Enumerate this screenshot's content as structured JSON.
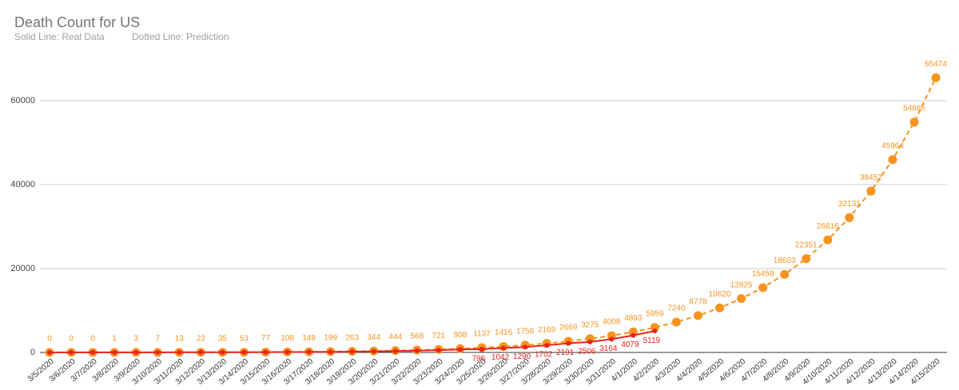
{
  "chart_data": {
    "type": "line",
    "title": "Death Count for US",
    "subtitle": [
      "Solid Line: Real Data",
      "Dotted Line: Prediction"
    ],
    "categories": [
      "3/5/2020",
      "3/6/2020",
      "3/7/2020",
      "3/8/2020",
      "3/9/2020",
      "3/10/2020",
      "3/11/2020",
      "3/12/2020",
      "3/13/2020",
      "3/14/2020",
      "3/15/2020",
      "3/16/2020",
      "3/17/2020",
      "3/18/2020",
      "3/19/2020",
      "3/20/2020",
      "3/21/2020",
      "3/22/2020",
      "3/23/2020",
      "3/24/2020",
      "3/25/2020",
      "3/26/2020",
      "3/27/2020",
      "3/28/2020",
      "3/29/2020",
      "3/30/2020",
      "3/31/2020",
      "4/1/2020",
      "4/2/2020",
      "4/3/2020",
      "4/4/2020",
      "4/5/2020",
      "4/6/2020",
      "4/7/2020",
      "4/8/2020",
      "4/9/2020",
      "4/10/2020",
      "4/11/2020",
      "4/12/2020",
      "4/13/2020",
      "4/14/2020",
      "4/15/2020"
    ],
    "series": [
      {
        "name": "Prediction",
        "color": "#f7931e",
        "dashed": true,
        "label_position": "above",
        "values": [
          0,
          0,
          0,
          1,
          3,
          7,
          13,
          22,
          35,
          53,
          77,
          108,
          148,
          199,
          263,
          344,
          444,
          568,
          721,
          908,
          1137,
          1416,
          1756,
          2169,
          2669,
          3275,
          4008,
          4893,
          5959,
          7240,
          8778,
          10620,
          12825,
          15459,
          18603,
          22351,
          26816,
          32131,
          38452,
          45964,
          54885,
          65474
        ]
      },
      {
        "name": "Real Data",
        "color": "#e8231f",
        "dashed": false,
        "label_position": "below",
        "values": [
          11,
          14,
          17,
          21,
          22,
          28,
          36,
          40,
          47,
          54,
          63,
          85,
          108,
          118,
          200,
          244,
          307,
          427,
          552,
          706,
          796,
          1042,
          1290,
          1702,
          2191,
          2506,
          3164,
          4079,
          5119,
          null,
          null,
          null,
          null,
          null,
          null,
          null,
          null,
          null,
          null,
          null,
          null,
          null
        ],
        "value_labels": [
          null,
          null,
          null,
          null,
          null,
          null,
          null,
          null,
          null,
          null,
          null,
          null,
          null,
          null,
          null,
          null,
          null,
          null,
          null,
          null,
          "796",
          "1042",
          "1290",
          "1702",
          "2191",
          "2506",
          "3164",
          "4079",
          "5119",
          null,
          null,
          null,
          null,
          null,
          null,
          null,
          null,
          null,
          null,
          null,
          null,
          null
        ]
      }
    ],
    "ylim": [
      0,
      70000
    ],
    "yticks": [
      0,
      20000,
      40000,
      60000
    ],
    "grid": true
  }
}
